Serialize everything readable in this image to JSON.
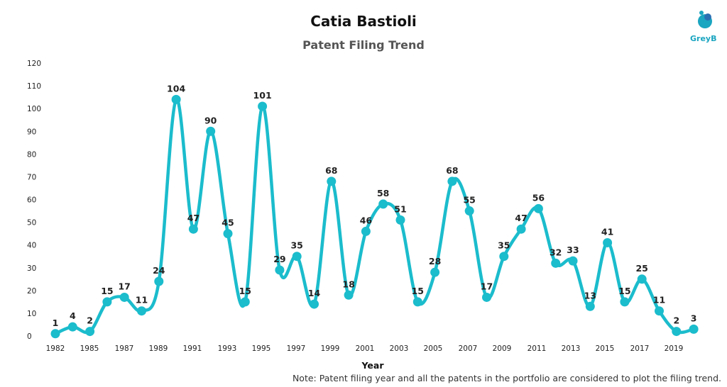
{
  "title": "Catia Bastioli",
  "subtitle": "Patent Filing Trend",
  "logo_text": "GreyB",
  "note": "Note: Patent filing year and all the patents in the portfolio are considered to plot the filing trend.",
  "colors": {
    "line": "#1bbccc",
    "logo": "#1aa5c0"
  },
  "chart_data": {
    "type": "line",
    "title": "Catia Bastioli",
    "subtitle": "Patent Filing Trend",
    "xlabel": "Year",
    "ylabel": "",
    "ylim": [
      0,
      120
    ],
    "yticks": [
      0,
      10,
      20,
      30,
      40,
      50,
      60,
      70,
      80,
      90,
      100,
      110,
      120
    ],
    "xtick_labels": [
      "1982",
      "1985",
      "1987",
      "1989",
      "1991",
      "1993",
      "1995",
      "1997",
      "1999",
      "2001",
      "2003",
      "2005",
      "2007",
      "2009",
      "2011",
      "2013",
      "2015",
      "2017",
      "2019"
    ],
    "grid": false,
    "x": [
      "1982",
      "1983",
      "1985",
      "1986",
      "1987",
      "1988",
      "1989",
      "1990",
      "1991",
      "1992",
      "1993",
      "1994",
      "1995",
      "1996",
      "1997",
      "1998",
      "1999",
      "2000",
      "2001",
      "2002",
      "2003",
      "2004",
      "2005",
      "2006",
      "2007",
      "2008",
      "2009",
      "2010",
      "2011",
      "2012",
      "2013",
      "2014",
      "2015",
      "2016",
      "2017",
      "2018",
      "2019",
      "2020"
    ],
    "values": [
      1,
      4,
      2,
      15,
      17,
      11,
      24,
      104,
      47,
      90,
      45,
      15,
      101,
      29,
      35,
      14,
      68,
      18,
      46,
      58,
      51,
      15,
      28,
      68,
      55,
      17,
      35,
      47,
      56,
      32,
      33,
      13,
      41,
      15,
      25,
      11,
      2,
      3
    ]
  }
}
